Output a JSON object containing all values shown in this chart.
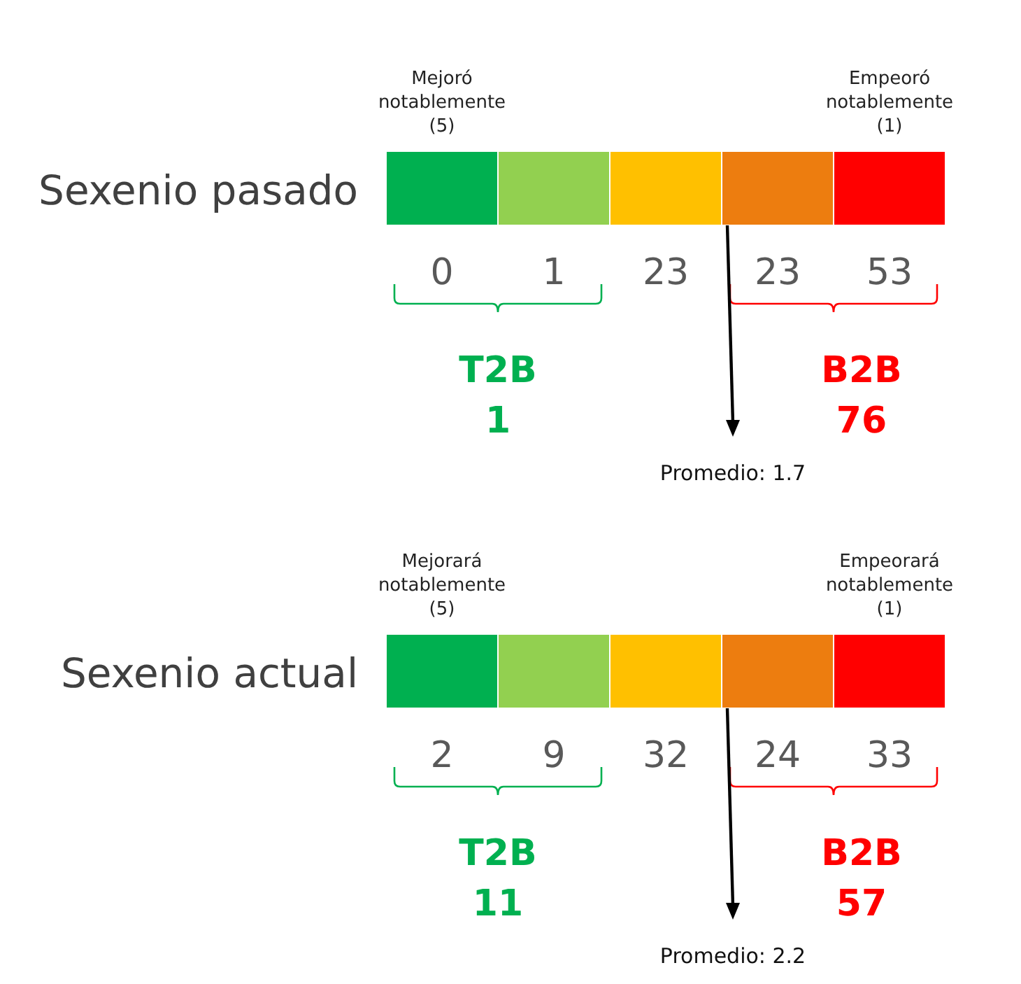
{
  "chart_data": [
    {
      "type": "other",
      "title": "Sexenio pasado",
      "categories": [
        null,
        null,
        null,
        null,
        null
      ],
      "values": [
        0,
        1,
        23,
        23,
        53
      ],
      "colors": [
        "#00b050",
        "#92d050",
        "#ffc000",
        "#ed7d0f",
        "#ff0000"
      ],
      "data_labels": true,
      "annotations": [
        "Mejoró\nnotablemente\n(5)",
        "Empeoró\nnotablemente\n(1)",
        "T2B\n1",
        "B2B\n76",
        "Promedio: 1.7"
      ]
    },
    {
      "type": "other",
      "title": "Sexenio actual",
      "categories": [
        null,
        null,
        null,
        null,
        null
      ],
      "values": [
        2,
        9,
        32,
        24,
        33
      ],
      "colors": [
        "#00b050",
        "#92d050",
        "#ffc000",
        "#ed7d0f",
        "#ff0000"
      ],
      "data_labels": true,
      "annotations": [
        "Mejorará\nnotablemente\n(5)",
        "Empeorará\nnotablemente\n(1)",
        "T2B\n11",
        "B2B\n57",
        "Promedio: 2.2"
      ]
    }
  ]
}
